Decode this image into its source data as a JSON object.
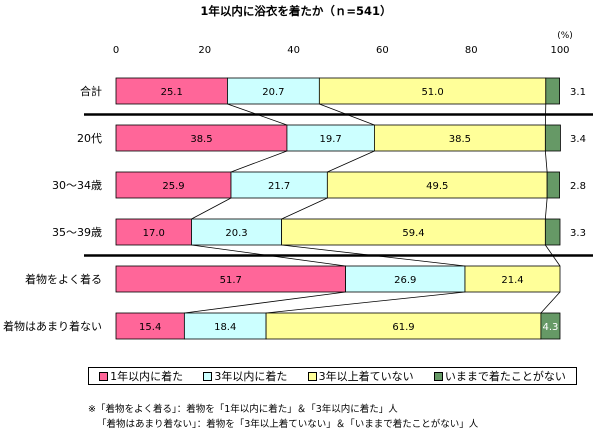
{
  "chart_data": {
    "type": "bar",
    "orientation": "horizontal",
    "stacked": true,
    "title": "1年以内に浴衣を着たか（ｎ=541）",
    "unit_label": "(%)",
    "xlim": [
      0,
      100
    ],
    "x_ticks": [
      "0",
      "20",
      "40",
      "60",
      "80",
      "100"
    ],
    "categories": [
      "合計",
      "20代",
      "30～34歳",
      "35～39歳",
      "着物をよく着る",
      "着物はあまり着ない"
    ],
    "series": [
      {
        "name": "1年以内に着た",
        "color": "#ff6699",
        "values": [
          25.1,
          38.5,
          25.9,
          17.0,
          51.7,
          15.4
        ]
      },
      {
        "name": "3年以内に着た",
        "color": "#ccffff",
        "values": [
          20.7,
          19.7,
          21.7,
          20.3,
          26.9,
          18.4
        ]
      },
      {
        "name": "3年以上着ていない",
        "color": "#ffff99",
        "values": [
          51.0,
          38.5,
          49.5,
          59.4,
          21.4,
          61.9
        ]
      },
      {
        "name": "いままで着たことがない",
        "color": "#669966",
        "values": [
          3.1,
          3.4,
          2.8,
          3.3,
          null,
          4.3
        ]
      }
    ],
    "value_labels": [
      [
        "25.1",
        "20.7",
        "51.0",
        "3.1"
      ],
      [
        "38.5",
        "19.7",
        "38.5",
        "3.4"
      ],
      [
        "25.9",
        "21.7",
        "49.5",
        "2.8"
      ],
      [
        "17.0",
        "20.3",
        "59.4",
        "3.3"
      ],
      [
        "51.7",
        "26.9",
        "21.4",
        ""
      ],
      [
        "15.4",
        "18.4",
        "61.9",
        "4.3"
      ]
    ],
    "label_outside_last": [
      true,
      true,
      true,
      true,
      false,
      false
    ],
    "group_separators_after": [
      0,
      3
    ],
    "legend_placement": "bottom"
  },
  "footnotes": [
    "※「着物をよく着る」：着物を「1年以内に着た」＆「3年以内に着た」人",
    "「着物はあまり着ない」：着物を「3年以上着ていない」＆「いままで着たことがない」人"
  ]
}
